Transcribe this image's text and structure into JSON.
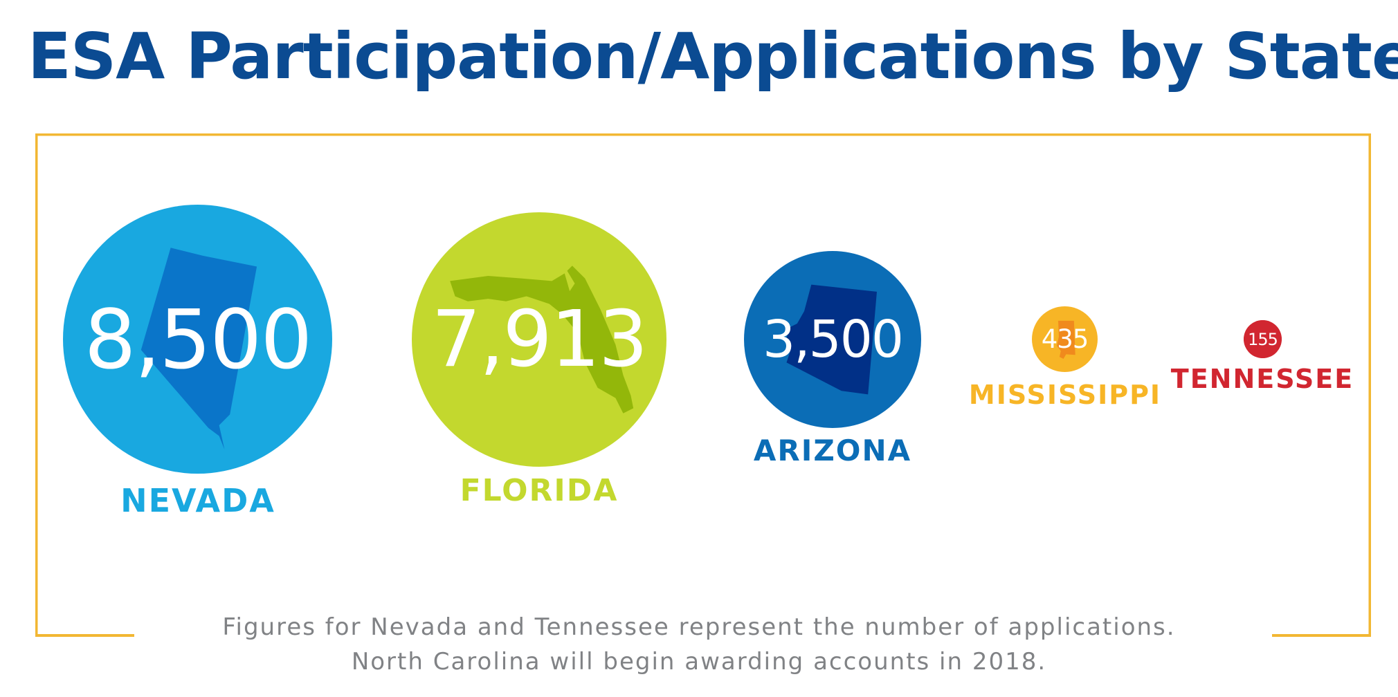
{
  "title": "ESA Participation/Applications by State",
  "colors": {
    "title": "#0b4b92",
    "frame": "#f2b733",
    "note": "#808285"
  },
  "chart_data": {
    "type": "bubble",
    "states": [
      {
        "name": "NEVADA",
        "value": 8500,
        "label": "8,500",
        "color": "#19a8e0",
        "shape_color": "#0a75c9",
        "icon": "nevada-map-icon"
      },
      {
        "name": "FLORIDA",
        "value": 7913,
        "label": "7,913",
        "color": "#c3d82e",
        "shape_color": "#93b70a",
        "icon": "florida-map-icon"
      },
      {
        "name": "ARIZONA",
        "value": 3500,
        "label": "3,500",
        "color": "#0b6db6",
        "shape_color": "#013087",
        "icon": "arizona-map-icon"
      },
      {
        "name": "MISSISSIPPI",
        "value": 435,
        "label": "435",
        "color": "#f7b526",
        "shape_color": "#f08a1d",
        "icon": "mississippi-map-icon"
      },
      {
        "name": "TENNESSEE",
        "value": 155,
        "label": "155",
        "color": "#d12630",
        "shape_color": "#d12630",
        "icon": "tennessee-map-icon"
      }
    ]
  },
  "footnote": {
    "line1": "Figures for Nevada and Tennessee represent the number of applications.",
    "line2": "North Carolina will begin awarding accounts in 2018."
  }
}
